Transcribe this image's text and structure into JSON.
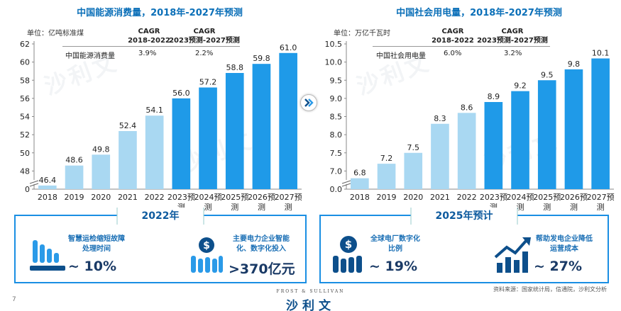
{
  "chart_data": [
    {
      "type": "bar",
      "title": "中国能源消费量，2018年-2027年预测",
      "unit": "单位：亿吨标准煤",
      "categories": [
        "2018",
        "2019",
        "2020",
        "2021",
        "2022",
        "2023预测",
        "2024预测",
        "2025预测",
        "2026预测",
        "2027预测"
      ],
      "values": [
        46.4,
        48.6,
        49.8,
        52.4,
        54.1,
        56.0,
        57.2,
        58.8,
        59.8,
        61.0
      ],
      "value_labels": [
        "46.4",
        "48.6",
        "49.8",
        "52.4",
        "54.1",
        "56.0",
        "57.2",
        "58.8",
        "59.8",
        "61.0"
      ],
      "forecast_from_index": 5,
      "ylim": [
        0,
        62
      ],
      "axis_break": true,
      "yticks": [
        0,
        48,
        50,
        52,
        54,
        56,
        58,
        60,
        62
      ],
      "ytick_labels": [
        "0",
        "48",
        "50",
        "52",
        "54",
        "56",
        "58",
        "60",
        "62"
      ],
      "cagr": {
        "header1": "CAGR",
        "period1": "2018-2022",
        "header2": "CAGR",
        "period2": "2023预测-2027预测",
        "row_label": "中国能源消费量",
        "value1": "3.9%",
        "value2": "2.2%"
      }
    },
    {
      "type": "bar",
      "title": "中国社会用电量，2018年-2027年预测",
      "unit": "单位：万亿千瓦时",
      "categories": [
        "2018",
        "2019",
        "2020",
        "2021",
        "2022",
        "2023预测",
        "2024预测",
        "2025预测",
        "2026预测",
        "2027预测"
      ],
      "values": [
        6.8,
        7.2,
        7.5,
        8.3,
        8.6,
        8.9,
        9.2,
        9.5,
        9.8,
        10.1
      ],
      "value_labels": [
        "6.8",
        "7.2",
        "7.5",
        "8.3",
        "8.6",
        "8.9",
        "9.2",
        "9.5",
        "9.8",
        "10.1"
      ],
      "forecast_from_index": 5,
      "ylim": [
        0,
        10.5
      ],
      "axis_break": true,
      "yticks": [
        0,
        7.0,
        7.5,
        8.0,
        8.5,
        9.0,
        9.5,
        10.0,
        10.5
      ],
      "ytick_labels": [
        "0.0",
        "7.0",
        "7.5",
        "8.0",
        "8.5",
        "9.0",
        "9.5",
        "10.0",
        "10.5"
      ],
      "cagr": {
        "header1": "CAGR",
        "period1": "2018-2022",
        "header2": "CAGR",
        "period2": "2023预测-2027预测",
        "row_label": "中国社会用电量",
        "value1": "6.0%",
        "value2": "3.2%"
      }
    }
  ],
  "colors": {
    "historical": "#a9d8f2",
    "forecast": "#1f9ae8",
    "title": "#0a6fb8",
    "panel_border": "#1a8fe3",
    "icon_dark": "#0d4f8b",
    "icon_light": "#2a9ae8"
  },
  "panel_left": {
    "title": "2022年",
    "item1_text": "智慧运检缩短故障处理时间",
    "item1_value": "~ 10%",
    "item1_icon": "bar-chart-down-icon",
    "item2_text": "主要电力企业智能化、数字化投入",
    "item2_value": ">370亿元",
    "item2_icon": "money-bars-icon"
  },
  "panel_right": {
    "title": "2025年预计",
    "item1_text": "全球电厂数字化比例",
    "item1_value": "~ 19%",
    "item1_icon": "dollar-bars-icon",
    "item2_text": "帮助发电企业降低运营成本",
    "item2_value": "~ 27%",
    "item2_icon": "growth-arrow-icon"
  },
  "source": "资料来源：国家统计局，信通院，沙利文分析",
  "page_number": "7",
  "brand_top": "FROST & SULLIVAN",
  "brand": "沙利文",
  "watermark": "沙利文"
}
